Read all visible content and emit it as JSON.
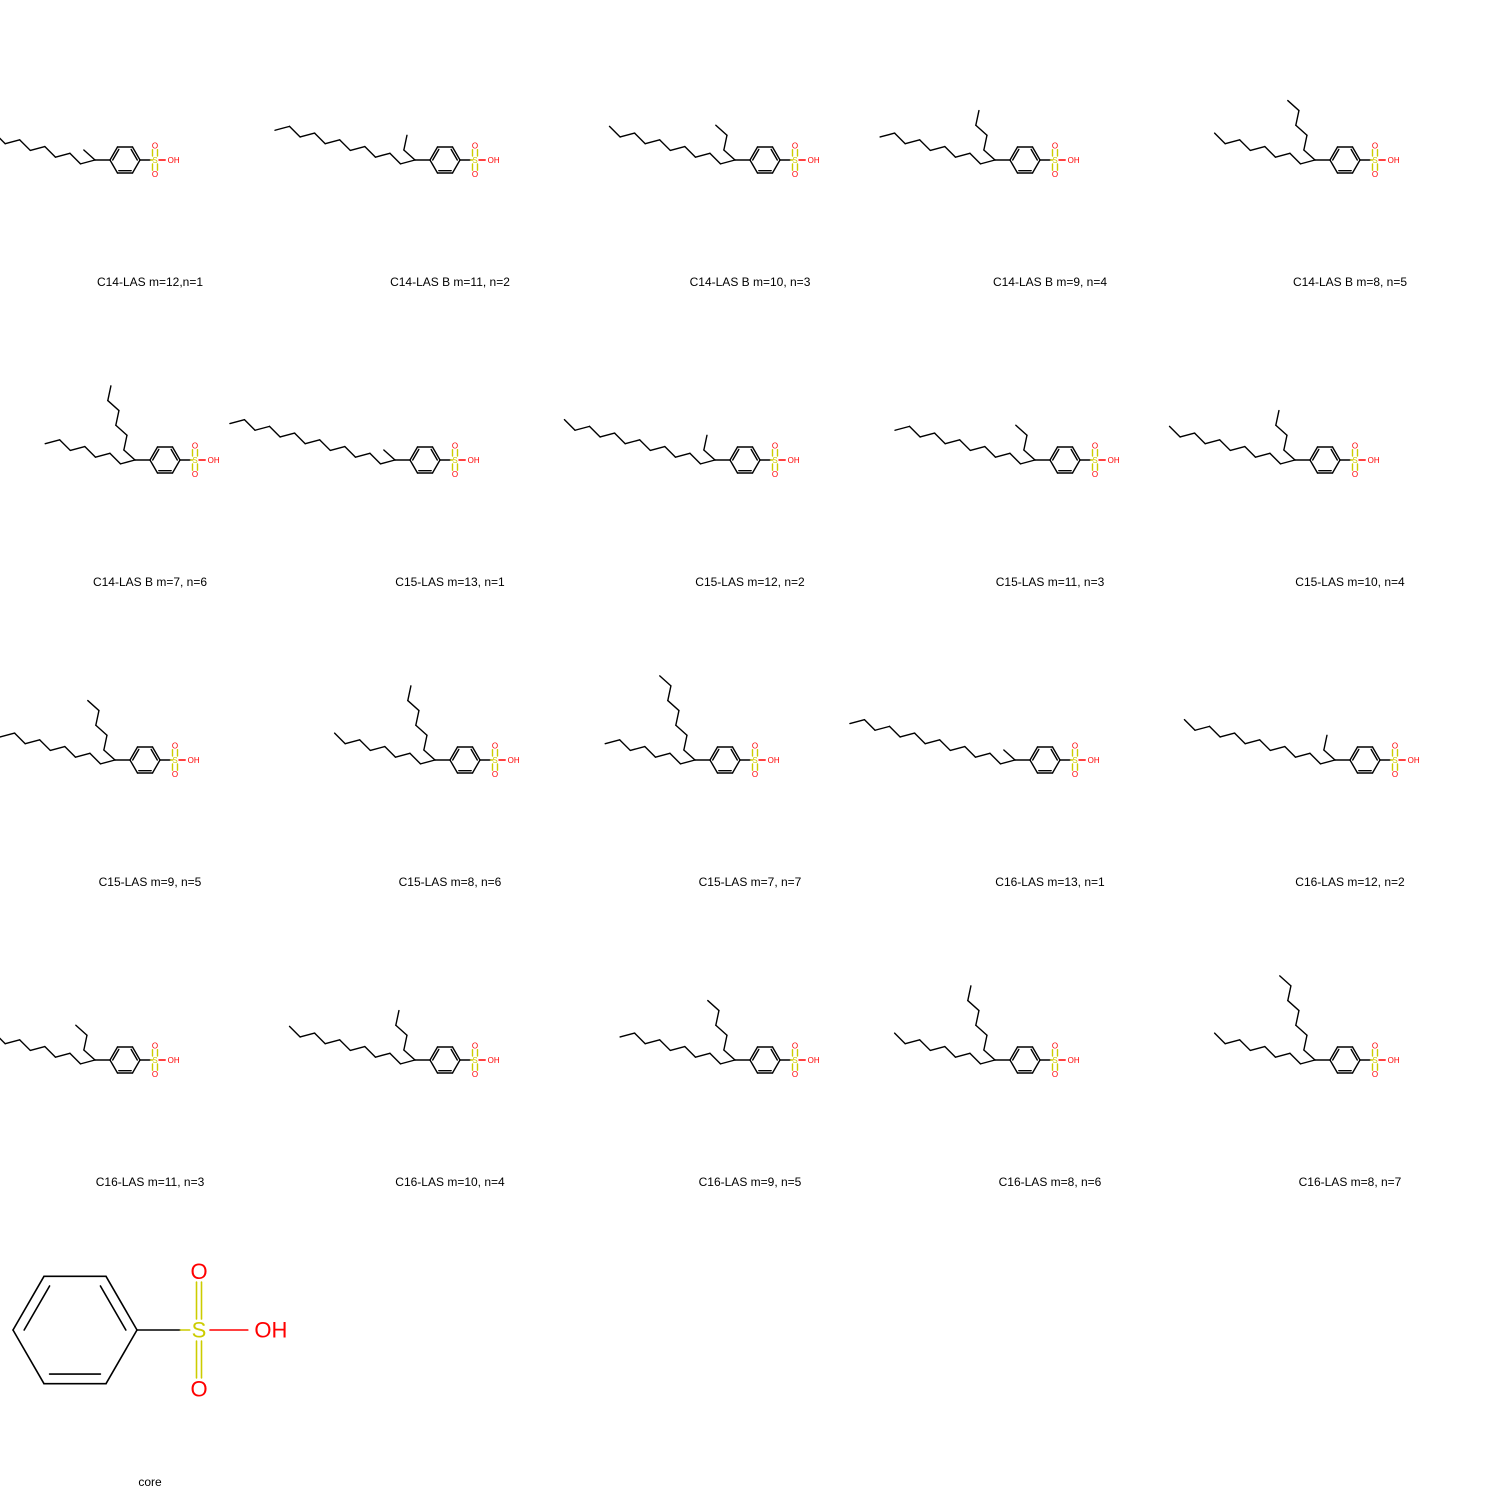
{
  "colors": {
    "bond": "#000000",
    "sulfur": "#cccc00",
    "oxygen": "#ff0000"
  },
  "atom_labels": {
    "sulfur": "S",
    "oxygen": "O",
    "hydroxyl": "OH"
  },
  "molecules": [
    {
      "label": "C14-LAS m=12,n=1",
      "m": 12,
      "n": 1
    },
    {
      "label": "C14-LAS B m=11, n=2",
      "m": 11,
      "n": 2
    },
    {
      "label": "C14-LAS B m=10, n=3",
      "m": 10,
      "n": 3
    },
    {
      "label": "C14-LAS B m=9, n=4",
      "m": 9,
      "n": 4
    },
    {
      "label": "C14-LAS B m=8, n=5",
      "m": 8,
      "n": 5
    },
    {
      "label": "C14-LAS B m=7, n=6",
      "m": 7,
      "n": 6
    },
    {
      "label": "C15-LAS m=13, n=1",
      "m": 13,
      "n": 1
    },
    {
      "label": "C15-LAS m=12, n=2",
      "m": 12,
      "n": 2
    },
    {
      "label": "C15-LAS m=11, n=3",
      "m": 11,
      "n": 3
    },
    {
      "label": "C15-LAS m=10, n=4",
      "m": 10,
      "n": 4
    },
    {
      "label": "C15-LAS m=9, n=5",
      "m": 9,
      "n": 5
    },
    {
      "label": "C15-LAS m=8, n=6",
      "m": 8,
      "n": 6
    },
    {
      "label": "C15-LAS m=7, n=7",
      "m": 7,
      "n": 7
    },
    {
      "label": "C16-LAS m=13, n=1",
      "m": 13,
      "n": 1
    },
    {
      "label": "C16-LAS m=12, n=2",
      "m": 12,
      "n": 2
    },
    {
      "label": "C16-LAS m=11, n=3",
      "m": 11,
      "n": 3
    },
    {
      "label": "C16-LAS m=10, n=4",
      "m": 10,
      "n": 4
    },
    {
      "label": "C16-LAS m=9, n=5",
      "m": 9,
      "n": 5
    },
    {
      "label": "C16-LAS m=8, n=6",
      "m": 8,
      "n": 6
    },
    {
      "label": "C16-LAS m=8, n=7",
      "m": 8,
      "n": 7
    },
    {
      "label": "core",
      "m": 0,
      "n": 0
    }
  ]
}
